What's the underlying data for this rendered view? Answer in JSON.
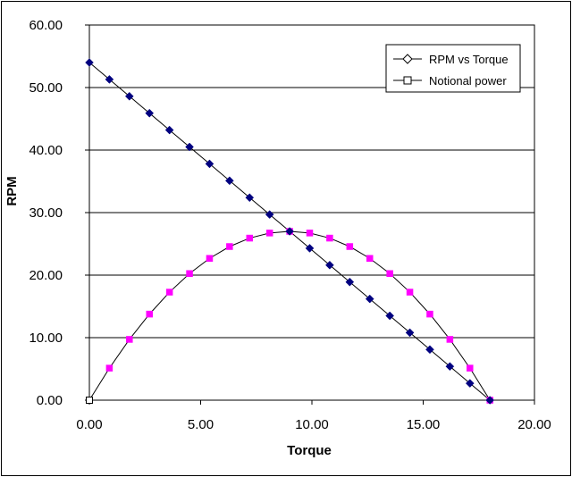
{
  "chart_data": {
    "type": "line",
    "xlabel": "Torque",
    "ylabel": "RPM",
    "xlim": [
      0,
      20
    ],
    "ylim": [
      0,
      60
    ],
    "x_ticks": [
      "0.00",
      "5.00",
      "10.00",
      "15.00",
      "20.00"
    ],
    "y_ticks": [
      "0.00",
      "10.00",
      "20.00",
      "30.00",
      "40.00",
      "50.00",
      "60.00"
    ],
    "grid": "horizontal",
    "legend_position": "top-right",
    "series": [
      {
        "name": "RPM vs Torque",
        "color": "#000080",
        "marker": "diamond",
        "x": [
          0,
          0.9,
          1.8,
          2.7,
          3.6,
          4.5,
          5.4,
          6.3,
          7.2,
          8.1,
          9.0,
          9.9,
          10.8,
          11.7,
          12.6,
          13.5,
          14.4,
          15.3,
          16.2,
          17.1,
          18.0
        ],
        "y": [
          54.0,
          51.3,
          48.6,
          45.9,
          43.2,
          40.5,
          37.8,
          35.1,
          32.4,
          29.7,
          27.0,
          24.3,
          21.6,
          18.9,
          16.2,
          13.5,
          10.8,
          8.1,
          5.4,
          2.7,
          0.0
        ]
      },
      {
        "name": "Notional power",
        "color": "#ff00ff",
        "marker": "square",
        "x": [
          0,
          0.9,
          1.8,
          2.7,
          3.6,
          4.5,
          5.4,
          6.3,
          7.2,
          8.1,
          9.0,
          9.9,
          10.8,
          11.7,
          12.6,
          13.5,
          14.4,
          15.3,
          16.2,
          17.1,
          18.0
        ],
        "y": [
          0.0,
          5.13,
          9.72,
          13.77,
          17.28,
          20.25,
          22.68,
          24.57,
          25.92,
          26.73,
          27.0,
          26.73,
          25.92,
          24.57,
          22.68,
          20.25,
          17.28,
          13.77,
          9.72,
          5.13,
          0.0
        ]
      }
    ]
  }
}
